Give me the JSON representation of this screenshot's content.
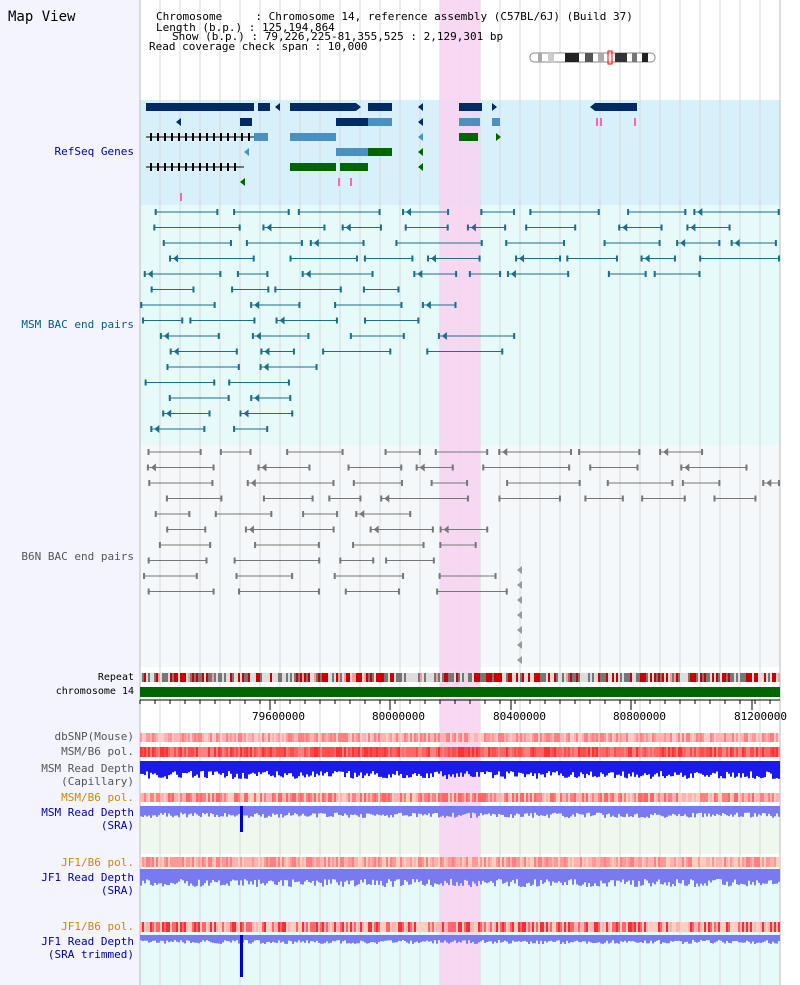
{
  "header": {
    "title": "Map View",
    "info_lines": [
      "Chromosome     : Chromosome 14, reference assembly (C57BL/6J) (Build 37)",
      "Length (b.p.) : 125,194,864",
      "Show (b.p.) : 79,226,225-81,355,525 : 2,129,301 bp",
      "Read coverage check span : 10,000"
    ]
  },
  "tracks": {
    "refseq": {
      "label": "RefSeq Genes",
      "color": "#0000aa"
    },
    "msm_bac": {
      "label": "MSM BAC end pairs",
      "color": "#005f7f"
    },
    "b6n_bac": {
      "label": "B6N BAC end pairs",
      "color": "#555555"
    },
    "repeat": {
      "label": "Repeat",
      "color": "#000000"
    },
    "chromosome": {
      "label": "chromosome 14",
      "color": "#000000"
    },
    "dbsnp": {
      "label": "dbSNP(Mouse)",
      "color": "#555555"
    },
    "msm_b6_pol": {
      "label": "MSM/B6 pol.",
      "color": "#555555"
    },
    "msm_depth_cap": {
      "label": "MSM Read Depth\n(Capillary)",
      "color": "#555555"
    },
    "msm_b6_pol2": {
      "label": "MSM/B6 pol.",
      "color": "#cc8800"
    },
    "msm_depth_sra": {
      "label": "MSM Read Depth\n(SRA)",
      "color": "#0000aa"
    },
    "jf1_b6_pol": {
      "label": "JF1/B6 pol.",
      "color": "#cc8800"
    },
    "jf1_depth_sra": {
      "label": "JF1 Read Depth\n(SRA)",
      "color": "#0000aa"
    },
    "jf1_b6_pol2": {
      "label": "JF1/B6 pol.",
      "color": "#cc8800"
    },
    "jf1_depth_trim": {
      "label": "JF1 Read Depth\n(SRA trimmed)",
      "color": "#0000aa"
    }
  },
  "axis": {
    "ticks": [
      "79600000",
      "80000000",
      "80400000",
      "80800000",
      "81200000"
    ]
  },
  "colors": {
    "highlight": "#f7d4f2",
    "refseq_bg": "#d8f0fa",
    "msm_bg": "#e6fafa",
    "b6n_bg": "#f4f8fa",
    "gene_dark": "#002b66",
    "gene_mid": "#4a90c0",
    "gene_green": "#006600",
    "msm_line": "#1a6f8a",
    "b6n_line": "#777777",
    "chromosome_bar": "#006600",
    "depth_blue": "#1a1aee",
    "depth_light": "#7a7af0"
  }
}
